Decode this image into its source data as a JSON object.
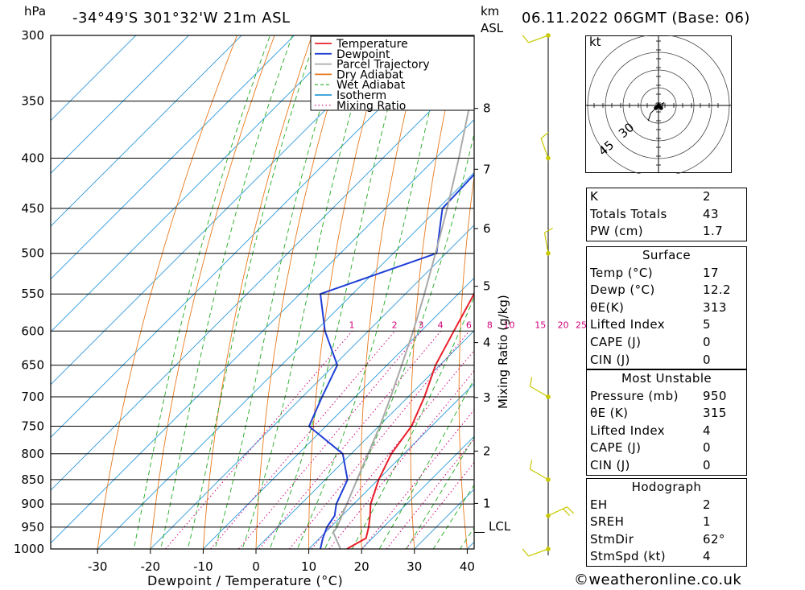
{
  "header": {
    "location": "-34°49'S 301°32'W 21m ASL",
    "datetime": "06.11.2022 06GMT (Base: 06)",
    "pressure_unit": "hPa",
    "height_unit": "km",
    "height_ref": "ASL"
  },
  "chart_data": {
    "type": "line",
    "title": "",
    "xlabel": "Dewpoint / Temperature (°C)",
    "ylabel": "hPa",
    "y_right_label": "Mixing Ratio (g/kg)",
    "xlim": [
      -40,
      40
    ],
    "ylim": [
      1000,
      300
    ],
    "y_scale": "log",
    "skew": "45-degree skew-T",
    "x_ticks": [
      -30,
      -20,
      -10,
      0,
      10,
      20,
      30,
      40
    ],
    "pressure_ticks": [
      300,
      350,
      400,
      450,
      500,
      550,
      600,
      650,
      700,
      750,
      800,
      850,
      900,
      950,
      1000
    ],
    "km_ticks": [
      1,
      2,
      3,
      4,
      5,
      6,
      7,
      8
    ],
    "lcl_label": "LCL",
    "lcl_pressure": 962,
    "mixing_ratio_labels": [
      1,
      2,
      3,
      4,
      6,
      8,
      10,
      15,
      20,
      25
    ],
    "legend_position": "top-center",
    "legend": [
      {
        "name": "Temperature",
        "color": "#e8202a",
        "style": "solid"
      },
      {
        "name": "Dewpoint",
        "color": "#1f3fd6",
        "style": "solid"
      },
      {
        "name": "Parcel Trajectory",
        "color": "#aaaaaa",
        "style": "solid"
      },
      {
        "name": "Dry Adiabat",
        "color": "#e87a1e",
        "style": "solid"
      },
      {
        "name": "Wet Adiabat",
        "color": "#22aa22",
        "style": "dashed"
      },
      {
        "name": "Isotherm",
        "color": "#2a9ad8",
        "style": "solid"
      },
      {
        "name": "Mixing Ratio",
        "color": "#d0007a",
        "style": "dotted"
      }
    ],
    "series": [
      {
        "name": "Temperature",
        "color": "#e8202a",
        "points": [
          [
            1000,
            17.2
          ],
          [
            975,
            18.8
          ],
          [
            950,
            17.2
          ],
          [
            925,
            15.3
          ],
          [
            900,
            13.2
          ],
          [
            850,
            10.1
          ],
          [
            800,
            7.6
          ],
          [
            750,
            6.2
          ],
          [
            700,
            3.1
          ],
          [
            650,
            -0.8
          ],
          [
            600,
            -3.8
          ],
          [
            550,
            -7.0
          ],
          [
            500,
            -12.4
          ],
          [
            450,
            -18.2
          ],
          [
            400,
            -24.0
          ],
          [
            350,
            -30.6
          ],
          [
            300,
            -38.5
          ]
        ]
      },
      {
        "name": "Dewpoint",
        "color": "#1f3fd6",
        "points": [
          [
            1000,
            12.2
          ],
          [
            975,
            10.6
          ],
          [
            950,
            9.3
          ],
          [
            925,
            8.6
          ],
          [
            900,
            6.7
          ],
          [
            850,
            4.2
          ],
          [
            800,
            -1.6
          ],
          [
            750,
            -13.2
          ],
          [
            700,
            -16.3
          ],
          [
            650,
            -19.4
          ],
          [
            600,
            -28.2
          ],
          [
            550,
            -36.1
          ],
          [
            500,
            -21.8
          ],
          [
            450,
            -29.2
          ],
          [
            400,
            -29.8
          ],
          [
            350,
            -35.6
          ],
          [
            300,
            -43.2
          ]
        ]
      },
      {
        "name": "Parcel Trajectory",
        "color": "#aaaaaa",
        "points": [
          [
            1000,
            16.0
          ],
          [
            962,
            11.5
          ],
          [
            950,
            11.2
          ],
          [
            900,
            8.7
          ],
          [
            850,
            6.0
          ],
          [
            800,
            3.2
          ],
          [
            750,
            0.2
          ],
          [
            700,
            -3.3
          ],
          [
            650,
            -7.2
          ],
          [
            600,
            -11.5
          ],
          [
            550,
            -16.4
          ],
          [
            500,
            -22.0
          ],
          [
            450,
            -28.3
          ],
          [
            400,
            -35.6
          ],
          [
            350,
            -44.2
          ],
          [
            300,
            -54.0
          ]
        ]
      }
    ],
    "wind_barbs": [
      {
        "pressure": 1000,
        "dir_deg": 250,
        "speed_kt": 10
      },
      {
        "pressure": 925,
        "dir_deg": 65,
        "speed_kt": 20
      },
      {
        "pressure": 850,
        "dir_deg": 300,
        "speed_kt": 10
      },
      {
        "pressure": 700,
        "dir_deg": 300,
        "speed_kt": 10
      },
      {
        "pressure": 500,
        "dir_deg": 350,
        "speed_kt": 5
      },
      {
        "pressure": 400,
        "dir_deg": 340,
        "speed_kt": 5
      },
      {
        "pressure": 300,
        "dir_deg": 250,
        "speed_kt": 10
      }
    ]
  },
  "hodograph": {
    "unit": "kt",
    "ring_labels": [
      "30",
      "45"
    ],
    "points_uv": [
      [
        -4,
        -6
      ],
      [
        -3,
        -3
      ],
      [
        -1,
        -1
      ],
      [
        0,
        0
      ],
      [
        2,
        1
      ],
      [
        1,
        -1
      ]
    ]
  },
  "indices": {
    "rows": [
      {
        "label": "K",
        "value": "2"
      },
      {
        "label": "Totals Totals",
        "value": "43"
      },
      {
        "label": "PW (cm)",
        "value": "1.7"
      }
    ],
    "surface": {
      "title": "Surface",
      "rows": [
        {
          "label": "Temp (°C)",
          "value": "17"
        },
        {
          "label": "Dewp (°C)",
          "value": "12.2"
        },
        {
          "label": "θE(K)",
          "value": "313"
        },
        {
          "label": "Lifted Index",
          "value": "5"
        },
        {
          "label": "CAPE (J)",
          "value": "0"
        },
        {
          "label": "CIN (J)",
          "value": "0"
        }
      ]
    },
    "most_unstable": {
      "title": "Most Unstable",
      "rows": [
        {
          "label": "Pressure (mb)",
          "value": "950"
        },
        {
          "label": "θE (K)",
          "value": "315"
        },
        {
          "label": "Lifted Index",
          "value": "4"
        },
        {
          "label": "CAPE (J)",
          "value": "0"
        },
        {
          "label": "CIN (J)",
          "value": "0"
        }
      ]
    },
    "hodograph_stats": {
      "title": "Hodograph",
      "rows": [
        {
          "label": "EH",
          "value": "2"
        },
        {
          "label": "SREH",
          "value": "1"
        },
        {
          "label": "StmDir",
          "value": "62°"
        },
        {
          "label": "StmSpd (kt)",
          "value": "4"
        }
      ]
    }
  },
  "footer": {
    "copyright_symbol": "©",
    "site": "weatheronline.co.uk"
  }
}
